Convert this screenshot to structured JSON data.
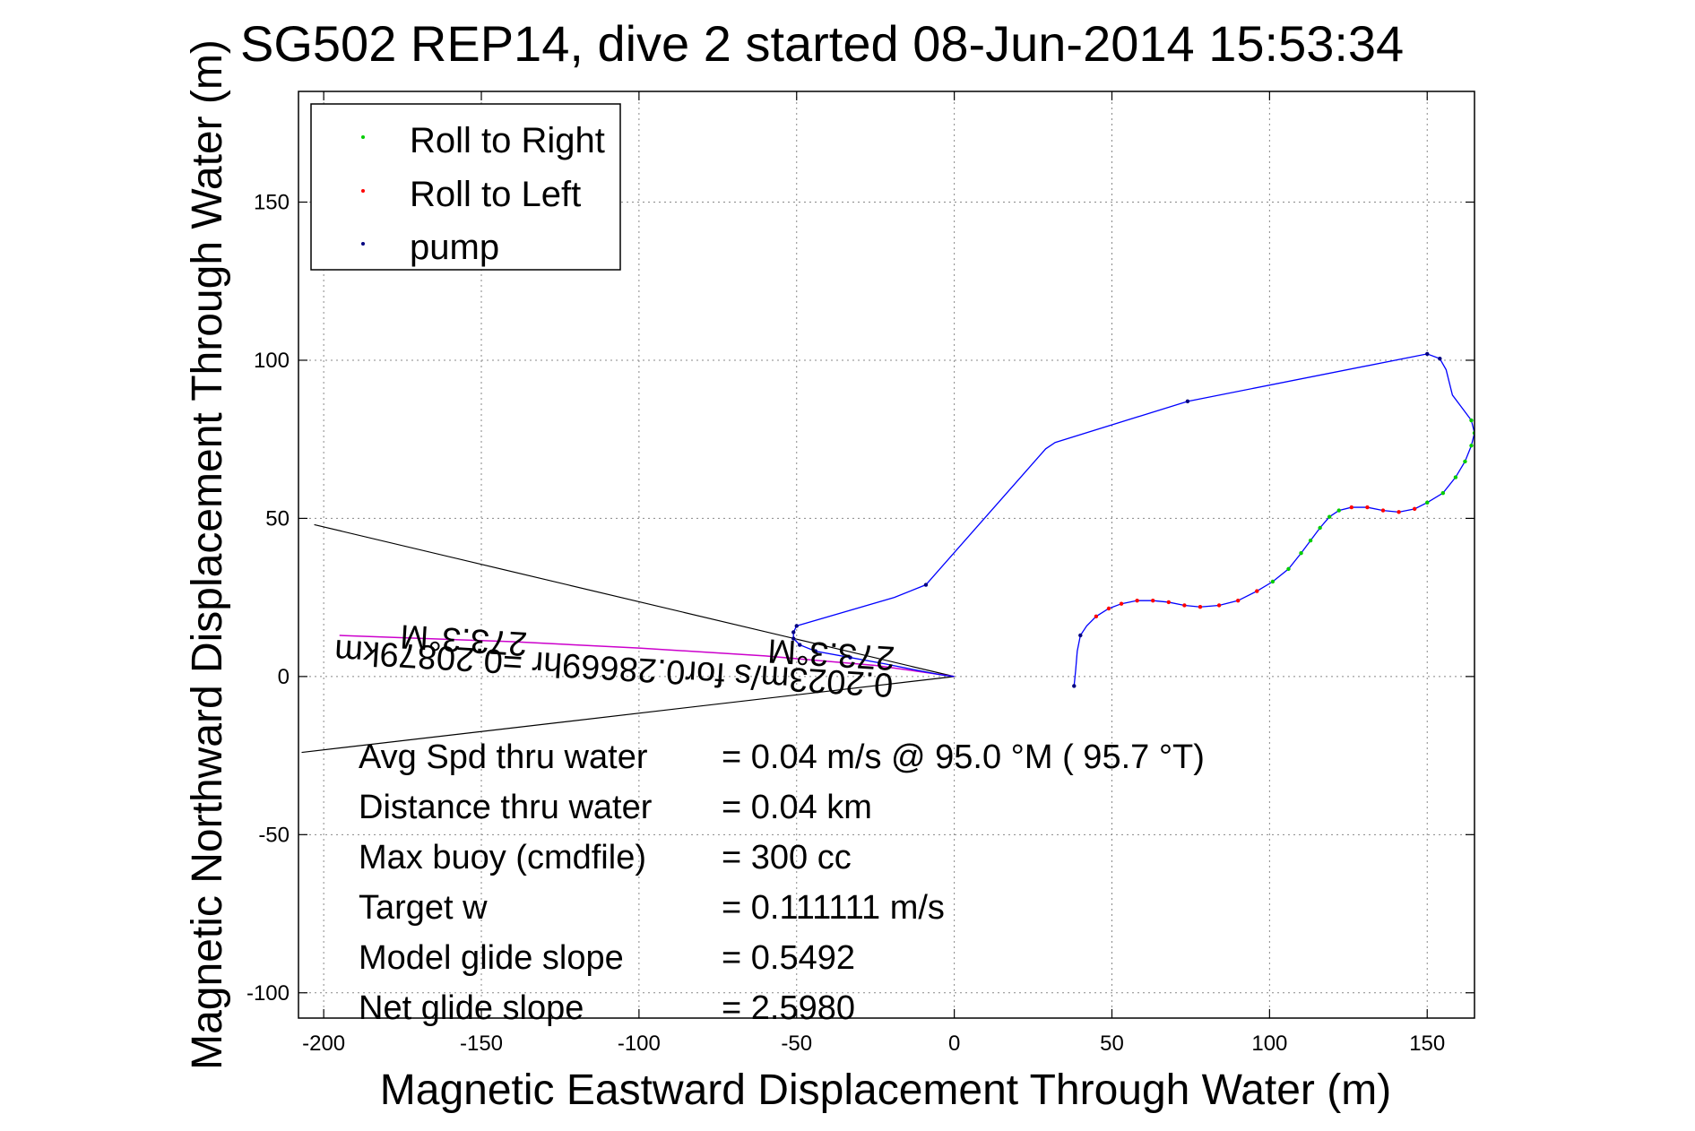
{
  "chart_data": {
    "type": "line",
    "title": "SG502 REP14, dive 2 started 08-Jun-2014 15:53:34",
    "xlabel": "Magnetic Eastward Displacement Through Water (m)",
    "ylabel": "Magnetic Northward Displacement Through Water (m)",
    "xlim": [
      -208,
      165
    ],
    "ylim": [
      -108,
      185
    ],
    "xticks": [
      -200,
      -150,
      -100,
      -50,
      0,
      50,
      100,
      150
    ],
    "yticks": [
      -100,
      -50,
      0,
      50,
      100,
      150
    ],
    "grid": true,
    "legend_position": "top-left",
    "series": [
      {
        "name": "Roll to Right",
        "color": "#00cc00"
      },
      {
        "name": "Roll to Left",
        "color": "#ff0000"
      },
      {
        "name": "pump",
        "color": "#000080"
      }
    ],
    "track": {
      "color": "#0000ff",
      "points": [
        [
          38,
          -3
        ],
        [
          38.5,
          2
        ],
        [
          39,
          8
        ],
        [
          40,
          13
        ],
        [
          42,
          16
        ],
        [
          45,
          19
        ],
        [
          49,
          21.5
        ],
        [
          53,
          23
        ],
        [
          58,
          24
        ],
        [
          63,
          24
        ],
        [
          68,
          23.5
        ],
        [
          73,
          22.5
        ],
        [
          78,
          22
        ],
        [
          84,
          22.5
        ],
        [
          90,
          24
        ],
        [
          96,
          27
        ],
        [
          101,
          30
        ],
        [
          106,
          34
        ],
        [
          110,
          39
        ],
        [
          113,
          43
        ],
        [
          116,
          47
        ],
        [
          119,
          50.5
        ],
        [
          122,
          52.5
        ],
        [
          126,
          53.5
        ],
        [
          131,
          53.5
        ],
        [
          136,
          52.5
        ],
        [
          141,
          52
        ],
        [
          146,
          53
        ],
        [
          150,
          55
        ],
        [
          155,
          58
        ],
        [
          159,
          63
        ],
        [
          162,
          68
        ],
        [
          164,
          73
        ],
        [
          165,
          77
        ],
        [
          164,
          81
        ],
        [
          161,
          85
        ],
        [
          158,
          89
        ],
        [
          157,
          93
        ],
        [
          156,
          97
        ],
        [
          154,
          100.5
        ],
        [
          150,
          102
        ],
        [
          74,
          87
        ],
        [
          32,
          74
        ],
        [
          29,
          72
        ],
        [
          -9,
          29
        ],
        [
          -19,
          25
        ],
        [
          -50,
          16
        ],
        [
          -51,
          14
        ],
        [
          -51,
          12
        ],
        [
          -49,
          10
        ],
        [
          -44,
          8
        ],
        [
          -33,
          6
        ],
        [
          -22,
          4
        ],
        [
          -12,
          2
        ],
        [
          -4,
          0.5
        ],
        [
          0,
          0
        ]
      ]
    },
    "green_segments": [
      [
        16,
        22
      ],
      [
        28,
        34
      ]
    ],
    "red_segments": [
      [
        5,
        15
      ],
      [
        23,
        27
      ]
    ],
    "pump_points": [
      0,
      3,
      39,
      40,
      41,
      44,
      46,
      47,
      48,
      49,
      50,
      51
    ],
    "magenta_line": {
      "color": "#cc00cc",
      "points": [
        [
          0,
          0
        ],
        [
          -25,
          3.5
        ],
        [
          -60,
          6.5
        ],
        [
          -100,
          9
        ],
        [
          -140,
          11
        ],
        [
          -195,
          13
        ]
      ]
    },
    "cone_lines": {
      "color": "#000000",
      "lines": [
        [
          [
            0,
            0
          ],
          [
            -203,
            48
          ]
        ],
        [
          [
            0,
            0
          ],
          [
            -207,
            -24
          ]
        ]
      ]
    },
    "rotated_annotations": {
      "line1": "0.2023m/s for0.28669hr =0.20879km",
      "line2": "273.3°M",
      "extra": "273.3°M"
    },
    "stats": [
      {
        "label": "Avg Spd thru water",
        "value": "=  0.04 m/s @  95.0 °M ( 95.7 °T)"
      },
      {
        "label": "Distance thru water",
        "value": "=  0.04 km"
      },
      {
        "label": "Max buoy (cmdfile)",
        "value": "= 300 cc"
      },
      {
        "label": "Target w",
        "value": "= 0.111111 m/s"
      },
      {
        "label": "Model glide slope",
        "value": "= 0.5492"
      },
      {
        "label": "Net glide slope",
        "value": "= 2.5980"
      }
    ]
  }
}
